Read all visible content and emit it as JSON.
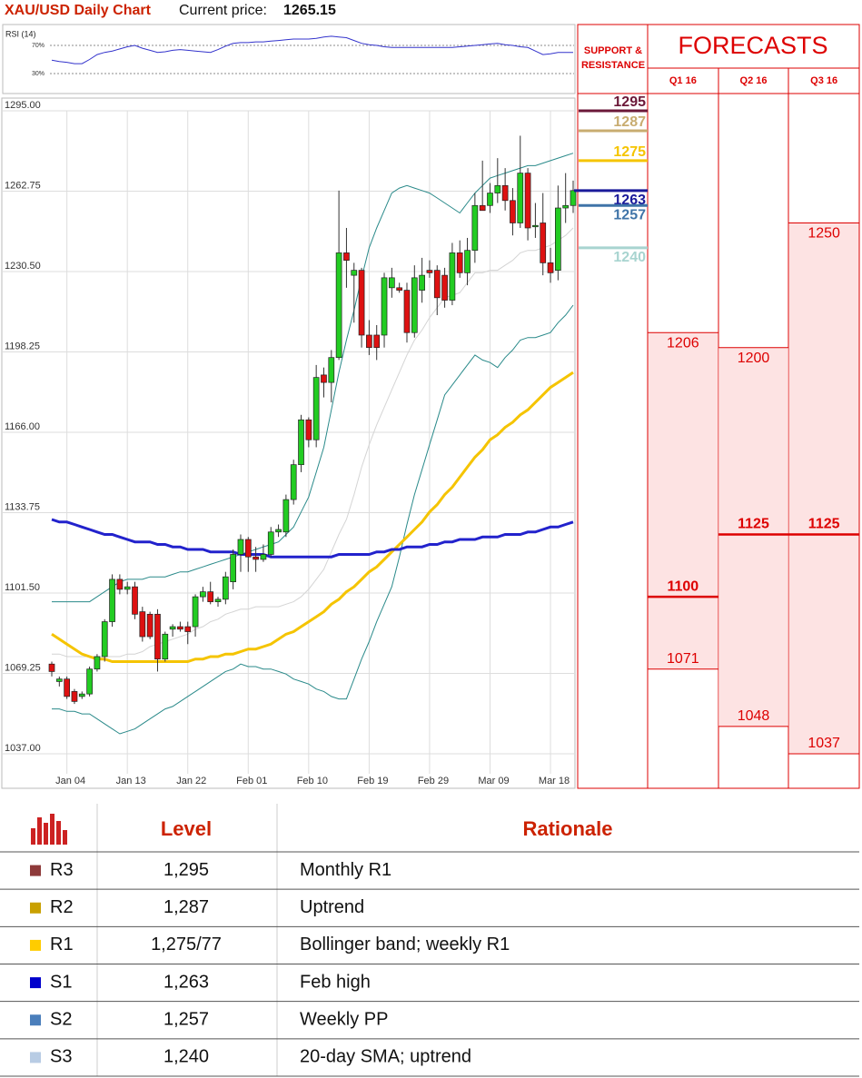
{
  "header": {
    "title": "XAU/USD Daily Chart",
    "price_label": "Current price:",
    "price": 1265.15
  },
  "chart_data": [
    {
      "type": "candlestick",
      "categories": [
        null,
        null,
        "Jan 04",
        null,
        null,
        null,
        null,
        null,
        null,
        null,
        "Jan 13",
        null,
        null,
        null,
        null,
        null,
        null,
        null,
        "Jan 22",
        null,
        null,
        null,
        null,
        null,
        null,
        null,
        "Feb 01",
        null,
        null,
        null,
        null,
        null,
        null,
        null,
        "Feb 10",
        null,
        null,
        null,
        null,
        null,
        null,
        null,
        "Feb 19",
        null,
        null,
        null,
        null,
        null,
        null,
        null,
        "Feb 29",
        null,
        null,
        null,
        null,
        null,
        null,
        null,
        "Mar 09",
        null,
        null,
        null,
        null,
        null,
        null,
        null,
        "Mar 18",
        null,
        null,
        null
      ],
      "open": [
        1073,
        1066,
        1067,
        1062,
        1060,
        1061,
        1071,
        1076,
        1090,
        1107,
        1103,
        1104,
        1094,
        1093,
        1093,
        1075,
        1087,
        1088,
        1088,
        1088,
        1100,
        1102,
        1098,
        1099,
        1106,
        1117,
        1123,
        1116,
        1115,
        1117,
        1126,
        1126,
        1139,
        1153,
        1171,
        1163,
        1189,
        1186,
        1196,
        1238,
        1229,
        1231,
        1205,
        1205,
        1205,
        1224,
        1224,
        1223,
        1206,
        1223,
        1231,
        1231,
        1229,
        1219,
        1238,
        1230,
        1239,
        1257,
        1257,
        1262,
        1265,
        1259,
        1250,
        1270,
        1249,
        1250,
        1234,
        1231,
        1256,
        1257
      ],
      "high": [
        1074,
        1068,
        1068,
        1063,
        1062,
        1072,
        1077,
        1091,
        1109,
        1109,
        1106,
        1106,
        1096,
        1094,
        1095,
        1086,
        1089,
        1090,
        1090,
        1101,
        1104,
        1106,
        1100,
        1110,
        1119,
        1125,
        1124,
        1120,
        1121,
        1128,
        1129,
        1141,
        1155,
        1173,
        1172,
        1193,
        1192,
        1199,
        1263,
        1248,
        1234,
        1232,
        1211,
        1209,
        1230,
        1232,
        1226,
        1226,
        1233,
        1236,
        1235,
        1233,
        1232,
        1242,
        1243,
        1244,
        1262,
        1275,
        1266,
        1276,
        1272,
        1264,
        1285,
        1272,
        1258,
        1262,
        1240,
        1265,
        1270,
        1267
      ],
      "low": [
        1068,
        1064,
        1059,
        1057,
        1059,
        1060,
        1070,
        1074,
        1088,
        1101,
        1101,
        1091,
        1082,
        1083,
        1070,
        1074,
        1084,
        1086,
        1081,
        1084,
        1098,
        1097,
        1096,
        1097,
        1103,
        1110,
        1110,
        1110,
        1114,
        1116,
        1124,
        1124,
        1137,
        1150,
        1160,
        1160,
        1180,
        1178,
        1195,
        1224,
        1210,
        1200,
        1197,
        1195,
        1200,
        1220,
        1222,
        1202,
        1204,
        1218,
        1228,
        1213,
        1216,
        1217,
        1228,
        1225,
        1234,
        1255,
        1254,
        1258,
        1255,
        1245,
        1248,
        1243,
        1244,
        1229,
        1226,
        1227,
        1250,
        1254
      ],
      "close": [
        1070,
        1067,
        1060,
        1058,
        1061,
        1071,
        1076,
        1090,
        1107,
        1103,
        1104,
        1093,
        1084,
        1084,
        1075,
        1085,
        1088,
        1087,
        1086,
        1100,
        1102,
        1098,
        1099,
        1108,
        1117,
        1123,
        1116,
        1115,
        1117,
        1126,
        1127,
        1139,
        1153,
        1171,
        1163,
        1188,
        1186,
        1196,
        1238,
        1235,
        1231,
        1205,
        1200,
        1200,
        1228,
        1228,
        1223,
        1206,
        1228,
        1229,
        1230,
        1220,
        1219,
        1238,
        1230,
        1239,
        1257,
        1255,
        1262,
        1265,
        1259,
        1250,
        1270,
        1248,
        1249,
        1234,
        1230,
        1256,
        1257,
        1263
      ],
      "up_color": "#22cc22",
      "down_color": "#dd1111",
      "series": [
        {
          "color": "#2a8a8a",
          "width": 1,
          "values": [
            1098,
            1098,
            1098,
            1098,
            1098,
            1098,
            1100,
            1102,
            1104,
            1106,
            1107,
            1107,
            1107,
            1108,
            1108,
            1108,
            1109,
            1110,
            1110,
            1111,
            1112,
            1113,
            1114,
            1115,
            1116,
            1117,
            1118,
            1119,
            1120,
            1121,
            1122,
            1125,
            1128,
            1134,
            1140,
            1150,
            1160,
            1175,
            1190,
            1203,
            1215,
            1228,
            1240,
            1248,
            1255,
            1262,
            1264,
            1265,
            1264,
            1263,
            1262,
            1260,
            1258,
            1256,
            1254,
            1258,
            1262,
            1265,
            1268,
            1269,
            1270,
            1271,
            1272,
            1273,
            1273,
            1274,
            1275,
            1276,
            1277,
            1278
          ]
        },
        {
          "color": "#2a8a8a",
          "width": 1,
          "values": [
            1055,
            1055,
            1054,
            1054,
            1053,
            1053,
            1051,
            1049,
            1047,
            1045,
            1046,
            1047,
            1049,
            1051,
            1053,
            1055,
            1056,
            1058,
            1060,
            1062,
            1064,
            1066,
            1068,
            1070,
            1071,
            1073,
            1072,
            1072,
            1071,
            1071,
            1070,
            1069,
            1067,
            1066,
            1065,
            1063,
            1062,
            1060,
            1059,
            1059,
            1067,
            1075,
            1082,
            1090,
            1097,
            1104,
            1116,
            1129,
            1141,
            1151,
            1161,
            1171,
            1181,
            1185,
            1189,
            1193,
            1197,
            1195,
            1194,
            1192,
            1196,
            1199,
            1203,
            1204,
            1204,
            1205,
            1206,
            1210,
            1213,
            1217
          ]
        },
        {
          "color": "#d4d4d4",
          "width": 1,
          "values": [
            1077,
            1077,
            1076,
            1076,
            1076,
            1076,
            1076,
            1076,
            1076,
            1076,
            1077,
            1077,
            1078,
            1080,
            1081,
            1082,
            1083,
            1084,
            1085,
            1087,
            1088,
            1090,
            1091,
            1093,
            1094,
            1095,
            1095,
            1096,
            1096,
            1096,
            1096,
            1097,
            1098,
            1100,
            1103,
            1107,
            1111,
            1118,
            1125,
            1131,
            1141,
            1152,
            1161,
            1169,
            1176,
            1183,
            1190,
            1197,
            1203,
            1207,
            1212,
            1216,
            1220,
            1221,
            1222,
            1226,
            1230,
            1230,
            1231,
            1231,
            1233,
            1235,
            1238,
            1239,
            1239,
            1240,
            1241,
            1243,
            1245,
            1248
          ]
        },
        {
          "color": "#f5c400",
          "width": 3,
          "values": [
            1085,
            1083,
            1081,
            1079,
            1077,
            1076,
            1075,
            1075,
            1074,
            1074,
            1074,
            1074,
            1074,
            1074,
            1074,
            1074,
            1074,
            1074,
            1074,
            1075,
            1075,
            1076,
            1076,
            1077,
            1077,
            1078,
            1079,
            1079,
            1080,
            1081,
            1083,
            1085,
            1086,
            1088,
            1090,
            1092,
            1094,
            1097,
            1099,
            1102,
            1104,
            1107,
            1110,
            1112,
            1115,
            1118,
            1121,
            1124,
            1127,
            1130,
            1134,
            1137,
            1141,
            1144,
            1148,
            1152,
            1156,
            1159,
            1163,
            1165,
            1168,
            1170,
            1173,
            1175,
            1178,
            1181,
            1184,
            1186,
            1188,
            1190
          ]
        },
        {
          "color": "#2222cc",
          "width": 3,
          "values": [
            1131,
            1130,
            1130,
            1129,
            1128,
            1127,
            1126,
            1125,
            1125,
            1124,
            1123,
            1122,
            1122,
            1122,
            1121,
            1121,
            1120,
            1120,
            1119,
            1119,
            1119,
            1118,
            1118,
            1118,
            1118,
            1117,
            1117,
            1117,
            1117,
            1116,
            1116,
            1116,
            1116,
            1116,
            1116,
            1116,
            1116,
            1116,
            1117,
            1117,
            1117,
            1117,
            1117,
            1118,
            1118,
            1119,
            1119,
            1120,
            1120,
            1120,
            1121,
            1121,
            1122,
            1122,
            1123,
            1123,
            1123,
            1124,
            1124,
            1124,
            1125,
            1125,
            1125,
            1126,
            1126,
            1127,
            1128,
            1128,
            1129,
            1130
          ]
        }
      ],
      "ylim": [
        1037,
        1295
      ],
      "yticks": [
        {
          "value": 1295,
          "label": "1295.00"
        },
        {
          "value": 1262.75,
          "label": "1262.75"
        },
        {
          "value": 1230.5,
          "label": "1230.50"
        },
        {
          "value": 1198.25,
          "label": "1198.25"
        },
        {
          "value": 1166,
          "label": "1166.00"
        },
        {
          "value": 1133.75,
          "label": "1133.75"
        },
        {
          "value": 1101.5,
          "label": "1101.50"
        },
        {
          "value": 1069.25,
          "label": "1069.25"
        },
        {
          "value": 1037,
          "label": "1037.00"
        }
      ],
      "grid": true,
      "levels_title": "SUPPORT & RESISTANCE",
      "levels": [
        {
          "value": 1295,
          "color": "#6b1838"
        },
        {
          "value": 1287,
          "color": "#c8ac70"
        },
        {
          "value": 1275,
          "color": "#f5c400"
        },
        {
          "value": 1263,
          "color": "#1a1a9a"
        },
        {
          "value": 1257,
          "color": "#3f74a8"
        },
        {
          "value": 1240,
          "color": "#a8d4d0"
        }
      ]
    },
    {
      "type": "line",
      "title": "RSI (14)",
      "color": "#3333cc",
      "values": [
        49,
        47,
        46,
        44,
        44,
        50,
        57,
        60,
        62,
        65,
        68,
        70,
        66,
        63,
        60,
        61,
        63,
        64,
        63,
        62,
        61,
        60,
        64,
        69,
        73,
        74,
        74,
        75,
        75,
        76,
        77,
        78,
        79,
        79,
        79,
        80,
        82,
        83,
        82,
        81,
        77,
        73,
        71,
        70,
        68,
        67,
        67,
        67,
        67,
        67,
        67,
        67,
        67,
        67,
        68,
        69,
        70,
        71,
        72,
        73,
        71,
        70,
        68,
        67,
        62,
        57,
        58,
        60,
        60,
        60
      ],
      "ylim": [
        6,
        96
      ],
      "yticks": [
        {
          "value": 70,
          "label": "70%"
        },
        {
          "value": 30,
          "label": "30%"
        }
      ]
    },
    {
      "type": "range",
      "title": "FORECASTS",
      "categories": [
        "Q1 16",
        "Q2 16",
        "Q3 16"
      ],
      "high": [
        1206,
        1200,
        1250
      ],
      "mid": [
        1100,
        1125,
        1125
      ],
      "low": [
        1071,
        1048,
        1037
      ],
      "ylim": [
        1037,
        1295
      ],
      "color": "#dd0000",
      "fill": "#fde3e3"
    }
  ],
  "table": {
    "header": [
      "Level",
      "Rationale"
    ],
    "rows": [
      {
        "name": "R3",
        "color": "#8e3a3a",
        "level": "1,295",
        "rationale": "Monthly R1"
      },
      {
        "name": "R2",
        "color": "#c9a000",
        "level": "1,287",
        "rationale": "Uptrend"
      },
      {
        "name": "R1",
        "color": "#ffcc00",
        "level": "1,275/77",
        "rationale": "Bollinger band; weekly R1"
      },
      {
        "name": "S1",
        "color": "#0000cc",
        "level": "1,263",
        "rationale": "Feb high"
      },
      {
        "name": "S2",
        "color": "#4a7ebb",
        "level": "1,257",
        "rationale": "Weekly PP"
      },
      {
        "name": "S3",
        "color": "#b8cce4",
        "level": "1,240",
        "rationale": "20-day SMA; uptrend"
      }
    ]
  }
}
